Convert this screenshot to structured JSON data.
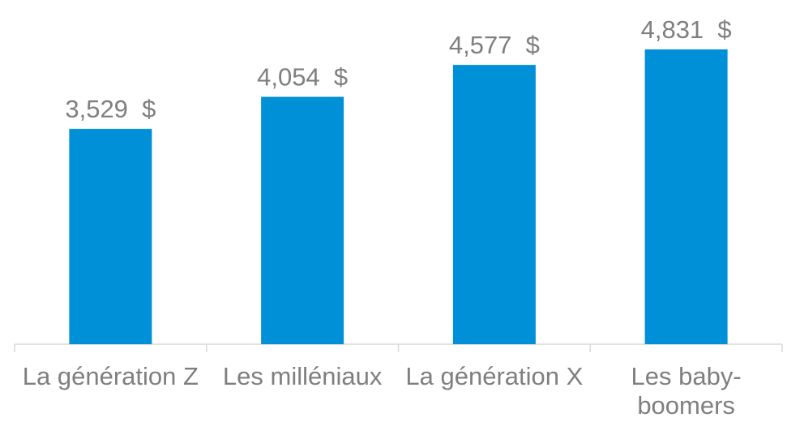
{
  "chart_data": {
    "type": "bar",
    "categories": [
      "La génération Z",
      "Les milléniaux",
      "La génération X",
      "Les baby-boomers"
    ],
    "values": [
      3529,
      4054,
      4577,
      4831
    ],
    "value_labels": [
      "3,529  $",
      "4,054  $",
      "4,577  $",
      "4,831  $"
    ],
    "color": "#0090d8"
  }
}
